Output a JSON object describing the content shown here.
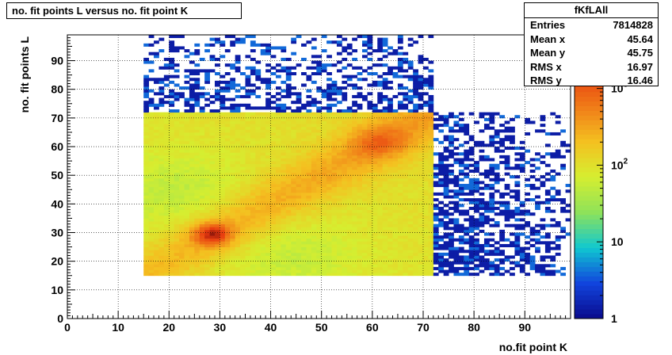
{
  "title": "no. fit points L versus no. fit point K",
  "stats": {
    "name": "fKfLAll",
    "rows": [
      {
        "label": "Entries",
        "value": "7814828"
      },
      {
        "label": "Mean x",
        "value": "45.64"
      },
      {
        "label": "Mean y",
        "value": "45.75"
      },
      {
        "label": "RMS x",
        "value": "16.97"
      },
      {
        "label": "RMS y",
        "value": "16.46"
      }
    ]
  },
  "chart_data": {
    "type": "heatmap",
    "title": "no. fit points L versus no. fit point K",
    "xlabel": "no.fit point K",
    "ylabel": "no. fit points  L",
    "xlim": [
      0,
      99
    ],
    "ylim": [
      0,
      99
    ],
    "x_ticks": [
      0,
      10,
      20,
      30,
      40,
      50,
      60,
      70,
      80,
      90
    ],
    "y_ticks": [
      0,
      10,
      20,
      30,
      40,
      50,
      60,
      70,
      80,
      90
    ],
    "grid": true,
    "z_scale": "log",
    "z_range": [
      1,
      5000
    ],
    "z_ticks": [
      "1",
      "10",
      "10^2",
      "10^3"
    ],
    "dense_region": {
      "x": [
        15,
        72
      ],
      "y": [
        15,
        72
      ]
    },
    "hotspots": [
      {
        "x": 28,
        "y": 29,
        "level": "max"
      },
      {
        "x": 61,
        "y": 61,
        "level": "high"
      }
    ],
    "sparse_regions": [
      {
        "x": [
          15,
          72
        ],
        "y": [
          72,
          99
        ]
      },
      {
        "x": [
          72,
          99
        ],
        "y": [
          15,
          72
        ]
      }
    ],
    "palette": [
      "#0a0a8c",
      "#1144dd",
      "#10c8d0",
      "#8ee25a",
      "#d6ee30",
      "#f4c020",
      "#f07a18",
      "#e83a10",
      "#6a0808"
    ]
  }
}
